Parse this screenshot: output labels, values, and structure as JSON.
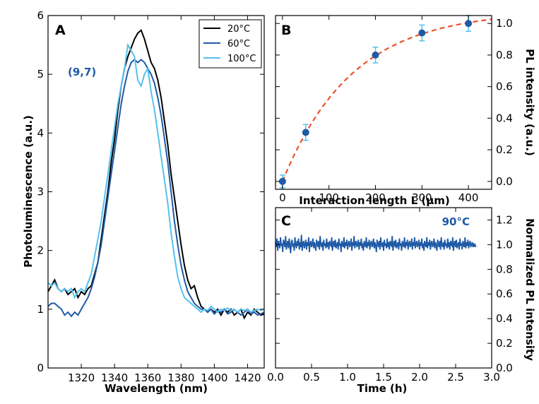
{
  "colors": {
    "c20": "#000000",
    "c60": "#1f5aa6",
    "c100": "#55c1ee",
    "point": "#1f5aa6",
    "errorbar": "#55c1ee",
    "fit": "#f0502b",
    "annot": "#1f5aa6"
  },
  "chart_data": [
    {
      "id": "A",
      "type": "line",
      "panel_label": "A",
      "xlabel": "Wavelength (nm)",
      "ylabel": "Photoluminescence (a.u.)",
      "xlim": [
        1300,
        1430
      ],
      "ylim": [
        0,
        6
      ],
      "xticks": [
        1320,
        1340,
        1360,
        1380,
        1400,
        1420
      ],
      "yticks": [
        0,
        1,
        2,
        3,
        4,
        5,
        6
      ],
      "annotation": "(9,7)",
      "legend_position": "top-right",
      "series": [
        {
          "name": "20°C",
          "color_key": "c20",
          "x": [
            1300,
            1302,
            1304,
            1306,
            1308,
            1310,
            1312,
            1314,
            1316,
            1318,
            1320,
            1322,
            1324,
            1326,
            1328,
            1330,
            1332,
            1334,
            1336,
            1338,
            1340,
            1342,
            1344,
            1346,
            1348,
            1350,
            1352,
            1354,
            1356,
            1358,
            1360,
            1362,
            1364,
            1366,
            1368,
            1370,
            1372,
            1374,
            1376,
            1378,
            1380,
            1382,
            1384,
            1386,
            1388,
            1390,
            1392,
            1394,
            1396,
            1398,
            1400,
            1402,
            1404,
            1406,
            1408,
            1410,
            1412,
            1414,
            1416,
            1418,
            1420,
            1422,
            1424,
            1426,
            1428,
            1430
          ],
          "y": [
            1.3,
            1.4,
            1.5,
            1.35,
            1.3,
            1.35,
            1.25,
            1.3,
            1.35,
            1.2,
            1.3,
            1.25,
            1.35,
            1.4,
            1.6,
            1.8,
            2.2,
            2.6,
            3.0,
            3.5,
            3.9,
            4.4,
            4.8,
            5.1,
            5.3,
            5.45,
            5.6,
            5.7,
            5.75,
            5.6,
            5.4,
            5.2,
            5.1,
            4.9,
            4.6,
            4.2,
            3.8,
            3.3,
            2.9,
            2.5,
            2.1,
            1.75,
            1.5,
            1.35,
            1.4,
            1.2,
            1.05,
            1.0,
            0.95,
            1.0,
            0.95,
            1.0,
            0.9,
            1.0,
            0.95,
            1.0,
            0.9,
            0.95,
            1.0,
            0.85,
            0.95,
            0.9,
            1.0,
            0.95,
            0.9,
            0.92
          ]
        },
        {
          "name": "60°C",
          "color_key": "c60",
          "x": [
            1300,
            1302,
            1304,
            1306,
            1308,
            1310,
            1312,
            1314,
            1316,
            1318,
            1320,
            1322,
            1324,
            1326,
            1328,
            1330,
            1332,
            1334,
            1336,
            1338,
            1340,
            1342,
            1344,
            1346,
            1348,
            1350,
            1352,
            1354,
            1356,
            1358,
            1360,
            1362,
            1364,
            1366,
            1368,
            1370,
            1372,
            1374,
            1376,
            1378,
            1380,
            1382,
            1384,
            1386,
            1388,
            1390,
            1392,
            1394,
            1396,
            1398,
            1400,
            1402,
            1404,
            1406,
            1408,
            1410,
            1412,
            1414,
            1416,
            1418,
            1420,
            1422,
            1424,
            1426,
            1428,
            1430
          ],
          "y": [
            1.05,
            1.1,
            1.1,
            1.05,
            1.0,
            0.9,
            0.95,
            0.88,
            0.95,
            0.9,
            1.0,
            1.1,
            1.2,
            1.35,
            1.55,
            1.8,
            2.1,
            2.5,
            2.9,
            3.3,
            3.7,
            4.1,
            4.5,
            4.8,
            5.05,
            5.2,
            5.25,
            5.2,
            5.25,
            5.2,
            5.1,
            5.0,
            4.85,
            4.6,
            4.3,
            3.9,
            3.5,
            3.0,
            2.5,
            2.1,
            1.75,
            1.5,
            1.3,
            1.2,
            1.1,
            1.05,
            1.0,
            1.0,
            0.95,
            1.0,
            0.92,
            0.98,
            0.95,
            1.0,
            0.92,
            0.95,
            1.0,
            0.95,
            0.9,
            0.95,
            1.0,
            0.92,
            0.95,
            0.9,
            0.92,
            0.95
          ]
        },
        {
          "name": "100°C",
          "color_key": "c100",
          "x": [
            1300,
            1302,
            1304,
            1306,
            1308,
            1310,
            1312,
            1314,
            1316,
            1318,
            1320,
            1322,
            1324,
            1326,
            1328,
            1330,
            1332,
            1334,
            1336,
            1338,
            1340,
            1342,
            1344,
            1346,
            1348,
            1350,
            1352,
            1354,
            1356,
            1358,
            1360,
            1362,
            1364,
            1366,
            1368,
            1370,
            1372,
            1374,
            1376,
            1378,
            1380,
            1382,
            1384,
            1386,
            1388,
            1390,
            1392,
            1394,
            1396,
            1398,
            1400,
            1402,
            1404,
            1406,
            1408,
            1410,
            1412,
            1414,
            1416,
            1418,
            1420,
            1422,
            1424,
            1426,
            1428,
            1430
          ],
          "y": [
            1.45,
            1.4,
            1.45,
            1.35,
            1.3,
            1.35,
            1.3,
            1.35,
            1.2,
            1.3,
            1.35,
            1.3,
            1.45,
            1.6,
            1.9,
            2.2,
            2.5,
            2.9,
            3.3,
            3.7,
            4.1,
            4.5,
            4.8,
            5.1,
            5.5,
            5.4,
            5.3,
            4.9,
            4.8,
            5.0,
            5.1,
            4.7,
            4.4,
            4.0,
            3.6,
            3.2,
            2.8,
            2.3,
            1.9,
            1.55,
            1.35,
            1.2,
            1.15,
            1.1,
            1.05,
            1.0,
            0.95,
            1.0,
            0.98,
            1.05,
            1.0,
            0.95,
            1.0,
            0.98,
            1.02,
            0.98,
            1.0,
            0.95,
            1.0,
            0.98,
            1.0,
            0.95,
            0.98,
            1.0,
            0.98,
            1.0
          ]
        }
      ]
    },
    {
      "id": "B",
      "type": "scatter",
      "panel_label": "B",
      "xlabel": "Interaction length L (µm)",
      "ylabel": "PL intensity (a.u.)",
      "xlim": [
        -15,
        450
      ],
      "ylim": [
        -0.05,
        1.05
      ],
      "xticks": [
        0,
        100,
        200,
        300,
        400
      ],
      "yticks": [
        0.0,
        0.2,
        0.4,
        0.6,
        0.8,
        1.0
      ],
      "points": {
        "x": [
          0,
          50,
          200,
          300,
          400
        ],
        "y": [
          0.0,
          0.31,
          0.8,
          0.94,
          1.0
        ],
        "error": [
          0.04,
          0.05,
          0.05,
          0.05,
          0.05
        ]
      },
      "fit": {
        "style": "dashed",
        "A": 1.08,
        "tau": 150,
        "x_range": [
          0,
          450
        ]
      }
    },
    {
      "id": "C",
      "type": "line",
      "panel_label": "C",
      "xlabel": "Time (h)",
      "ylabel": "Normalized PL intensity",
      "xlim": [
        0,
        3.0
      ],
      "ylim": [
        0,
        1.3
      ],
      "xticks": [
        0.0,
        0.5,
        1.0,
        1.5,
        2.0,
        2.5,
        3.0
      ],
      "xtick_labels": [
        "0.0",
        "0.5",
        "1.0",
        "1.5",
        "2.0",
        "2.5",
        "3.0"
      ],
      "yticks": [
        0.0,
        0.2,
        0.4,
        0.6,
        0.8,
        1.0,
        1.2
      ],
      "ytick_labels": [
        "0.0",
        "0.2",
        "0.4",
        "0.6",
        "0.8",
        "1.0",
        "1.2"
      ],
      "annotation": "90°C",
      "series": [
        {
          "name": "90°C",
          "x_start": 0.0,
          "x_step": 0.01,
          "y": [
            1.02,
            0.98,
            1.05,
            0.95,
            1.03,
            1.0,
            0.97,
            1.06,
            0.99,
            1.01,
            0.94,
            1.04,
            1.02,
            0.98,
            1.07,
            0.96,
            1.0,
            1.03,
            0.97,
            1.05,
            0.99,
            0.93,
            1.02,
            1.04,
            0.98,
            1.01,
            0.95,
            1.06,
            1.0,
            0.97,
            1.03,
            0.99,
            1.05,
            0.96,
            1.02,
            0.98,
            1.08,
            0.95,
            1.01,
            1.03,
            0.97,
            1.0,
            1.04,
            0.96,
            1.02,
            0.99,
            1.06,
            0.94,
            1.01,
            1.03,
            0.98,
            1.0,
            1.05,
            0.97,
            1.02,
            0.99,
            0.95,
            1.04,
            1.01,
            0.98,
            1.03,
            0.96,
            1.07,
            1.0,
            0.98,
            1.02,
            0.95,
            1.04,
            0.99,
            1.01,
            0.97,
            1.05,
            0.98,
            1.02,
            0.96,
            1.03,
            1.0,
            0.99,
            1.06,
            0.95,
            1.01,
            1.03,
            0.98,
            1.04,
            0.97,
            1.0,
            1.02,
            0.96,
            1.05,
            0.99,
            1.01,
            0.94,
            1.03,
            1.0,
            0.98,
            1.06,
            0.97,
            1.02,
            0.99,
            1.04,
            0.96,
            1.01,
            1.03,
            0.98,
            1.0,
            1.05,
            0.95,
            1.02,
            0.99,
            1.07,
            0.97,
            1.01,
            1.03,
            0.98,
            1.0,
            1.04,
            0.96,
            1.02,
            0.99,
            1.05,
            0.97,
            1.01,
            0.95,
            1.03,
            1.0,
            0.98,
            1.06,
            0.97,
            1.02,
            0.99,
            1.04,
            0.96,
            1.01,
            1.03,
            0.98,
            1.0,
            1.05,
            0.97,
            1.02,
            0.99,
            0.94,
            1.04,
            1.01,
            0.98,
            1.03,
            0.96,
            1.06,
            1.0,
            0.98,
            1.02,
            0.95,
            1.04,
            0.99,
            1.01,
            0.97,
            1.05,
            0.98,
            1.02,
            0.96,
            1.03,
            1.0,
            0.99,
            1.07,
            0.95,
            1.01,
            1.03,
            0.98,
            1.04,
            0.97,
            1.0,
            1.02,
            0.96,
            1.05,
            0.99,
            1.01,
            0.95,
            1.03,
            1.0,
            0.98,
            1.06,
            0.97,
            1.02,
            0.99,
            1.04,
            0.96,
            1.01,
            1.03,
            0.98,
            1.0,
            1.05,
            0.96,
            1.02,
            0.99,
            1.06,
            0.97,
            1.01,
            1.03,
            0.98,
            1.0,
            1.04,
            0.96,
            1.02,
            0.99,
            1.05,
            0.97,
            1.01,
            0.95,
            1.03,
            1.0,
            0.98,
            1.06,
            0.97,
            1.02,
            0.99,
            1.04,
            0.96,
            1.01,
            1.03,
            0.98,
            1.0,
            1.05,
            0.97,
            1.02,
            0.99,
            0.95,
            1.04,
            1.01,
            0.98,
            1.03,
            0.96,
            1.06,
            1.0,
            0.98,
            1.02,
            0.96,
            1.04,
            0.99,
            1.01,
            0.97,
            1.05,
            0.98,
            1.02,
            0.96,
            1.03,
            1.0,
            0.99,
            1.06,
            0.95,
            1.01,
            1.03,
            0.98,
            1.04,
            0.97,
            1.0,
            1.02,
            0.96,
            1.05,
            0.99,
            1.01,
            0.96,
            1.03,
            1.0,
            0.98,
            1.06,
            0.97,
            1.02,
            0.99,
            1.04,
            0.97,
            1.01,
            1.03,
            0.98,
            1.0,
            1.02,
            0.98,
            1.01,
            0.99,
            1.0,
            0.98
          ]
        }
      ]
    }
  ]
}
